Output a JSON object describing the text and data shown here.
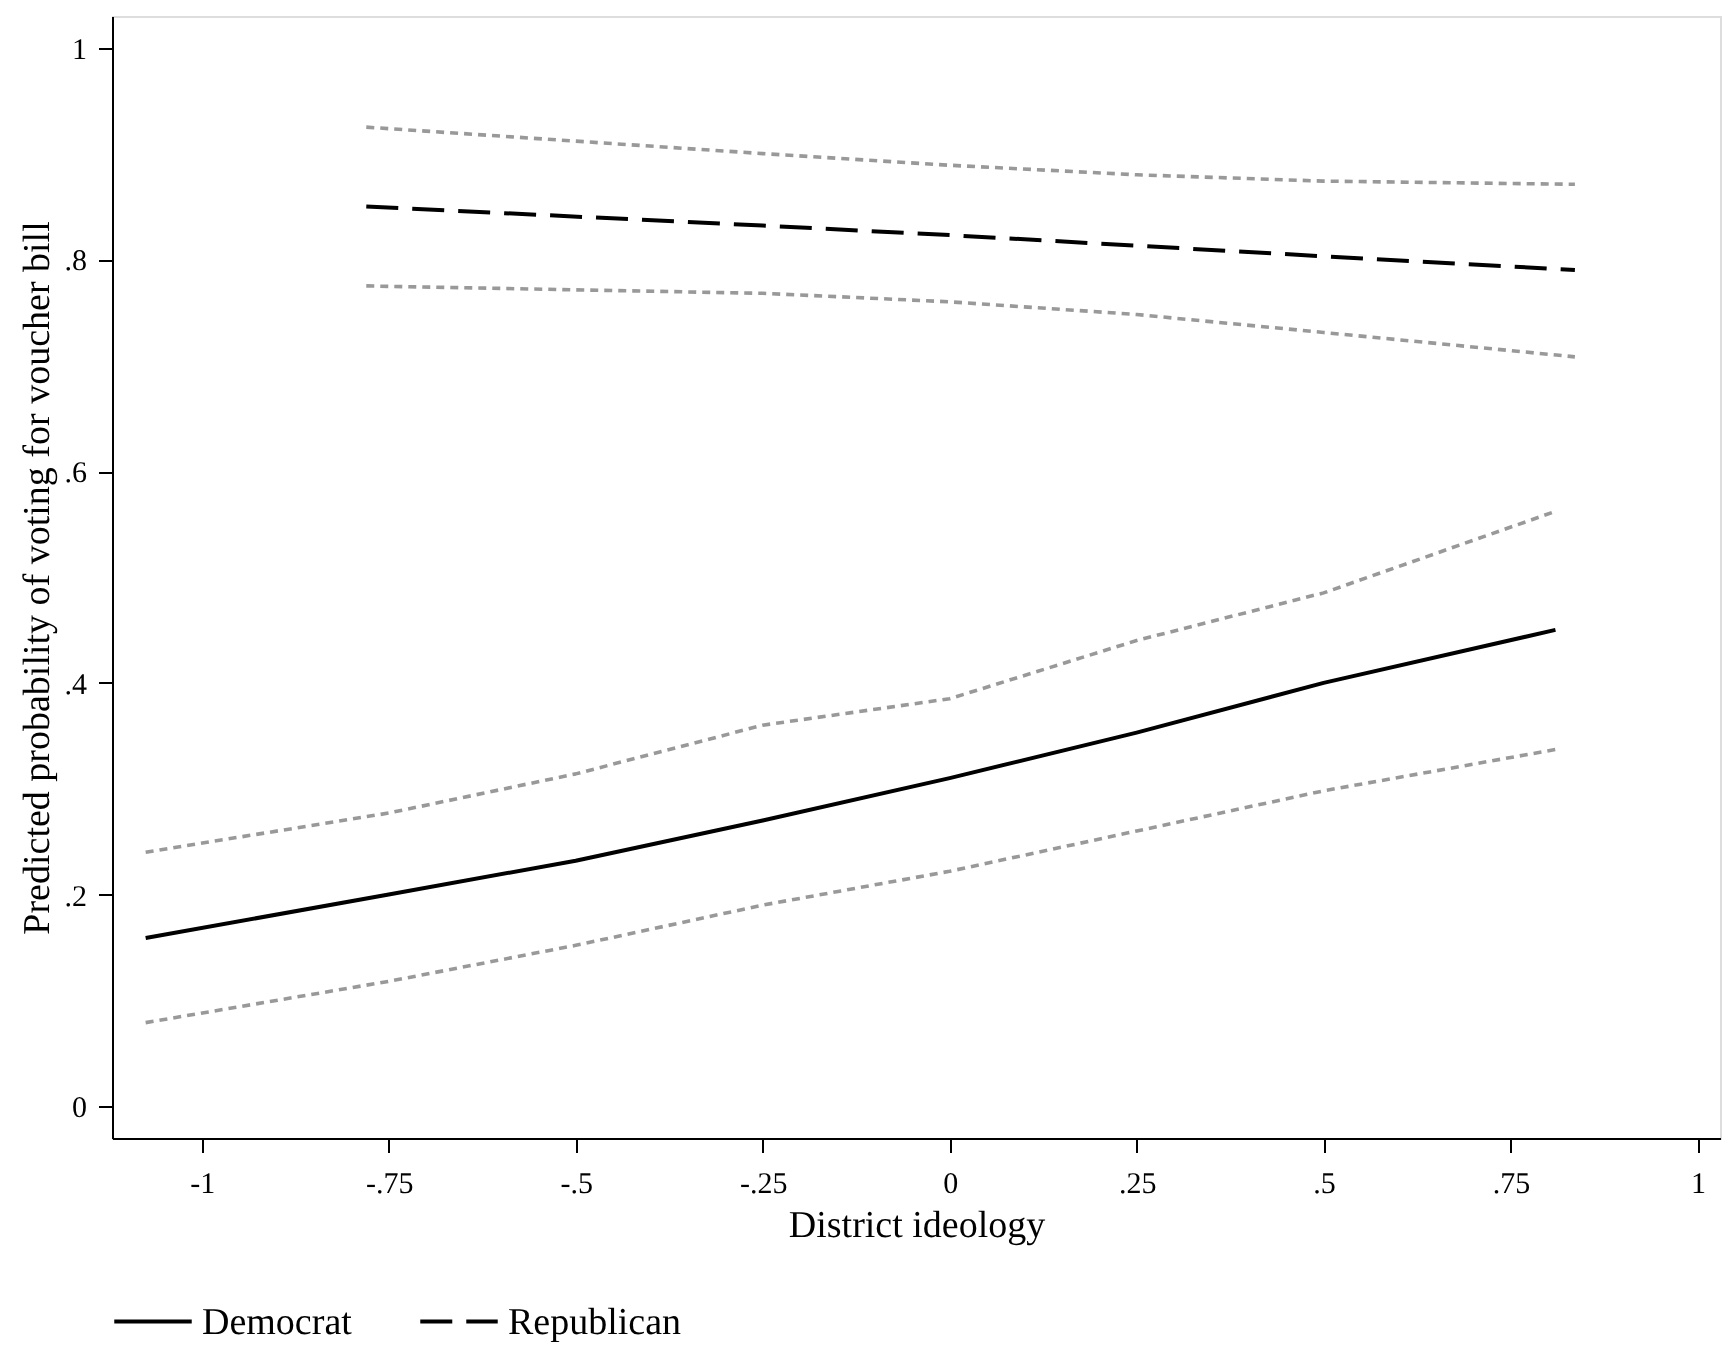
{
  "chart_data": {
    "type": "line",
    "xlabel": "District ideology",
    "ylabel": "Predicted probability of voting for voucher bill",
    "xlim": [
      -1.12,
      1.03
    ],
    "ylim": [
      -0.03,
      1.03
    ],
    "xticks": [
      {
        "value": -1,
        "label": "-1"
      },
      {
        "value": -0.75,
        "label": "-.75"
      },
      {
        "value": -0.5,
        "label": "-.5"
      },
      {
        "value": -0.25,
        "label": "-.25"
      },
      {
        "value": 0,
        "label": "0"
      },
      {
        "value": 0.25,
        "label": ".25"
      },
      {
        "value": 0.5,
        "label": ".5"
      },
      {
        "value": 0.75,
        "label": ".75"
      },
      {
        "value": 1,
        "label": "1"
      }
    ],
    "yticks": [
      {
        "value": 0,
        "label": "0"
      },
      {
        "value": 0.2,
        "label": ".2"
      },
      {
        "value": 0.4,
        "label": ".4"
      },
      {
        "value": 0.6,
        "label": ".6"
      },
      {
        "value": 0.8,
        "label": ".8"
      },
      {
        "value": 1,
        "label": "1"
      }
    ],
    "grid": false,
    "legend": "bottom",
    "marker": "none",
    "series": [
      {
        "name": "Democrat",
        "color": "#000000",
        "line_style": "solid",
        "x": [
          -1.075,
          -0.75,
          -0.5,
          -0.25,
          0,
          0.25,
          0.5,
          0.81
        ],
        "values": [
          0.159,
          0.2,
          0.232,
          0.27,
          0.31,
          0.353,
          0.4,
          0.45
        ]
      },
      {
        "color": "#999999",
        "line_style": "dotted",
        "x": [
          -1.075,
          -0.75,
          -0.5,
          -0.25,
          0,
          0.25,
          0.5,
          0.81
        ],
        "values": [
          0.24,
          0.277,
          0.314,
          0.36,
          0.385,
          0.44,
          0.485,
          0.562
        ]
      },
      {
        "color": "#999999",
        "line_style": "dotted",
        "x": [
          -1.075,
          -0.75,
          -0.5,
          -0.25,
          0,
          0.25,
          0.5,
          0.81
        ],
        "values": [
          0.079,
          0.118,
          0.152,
          0.19,
          0.222,
          0.26,
          0.298,
          0.337
        ]
      },
      {
        "name": "Republican",
        "color": "#000000",
        "line_style": "dashed",
        "x": [
          -0.78,
          -0.25,
          0,
          0.25,
          0.5,
          0.836
        ],
        "values": [
          0.85,
          0.832,
          0.823,
          0.813,
          0.803,
          0.79
        ]
      },
      {
        "color": "#999999",
        "line_style": "dotted",
        "x": [
          -0.78,
          -0.25,
          0,
          0.25,
          0.5,
          0.836
        ],
        "values": [
          0.925,
          0.9,
          0.889,
          0.88,
          0.874,
          0.871
        ]
      },
      {
        "color": "#999999",
        "line_style": "dotted",
        "x": [
          -0.78,
          -0.25,
          0,
          0.25,
          0.5,
          0.836
        ],
        "values": [
          0.775,
          0.768,
          0.76,
          0.748,
          0.731,
          0.708
        ]
      }
    ]
  }
}
